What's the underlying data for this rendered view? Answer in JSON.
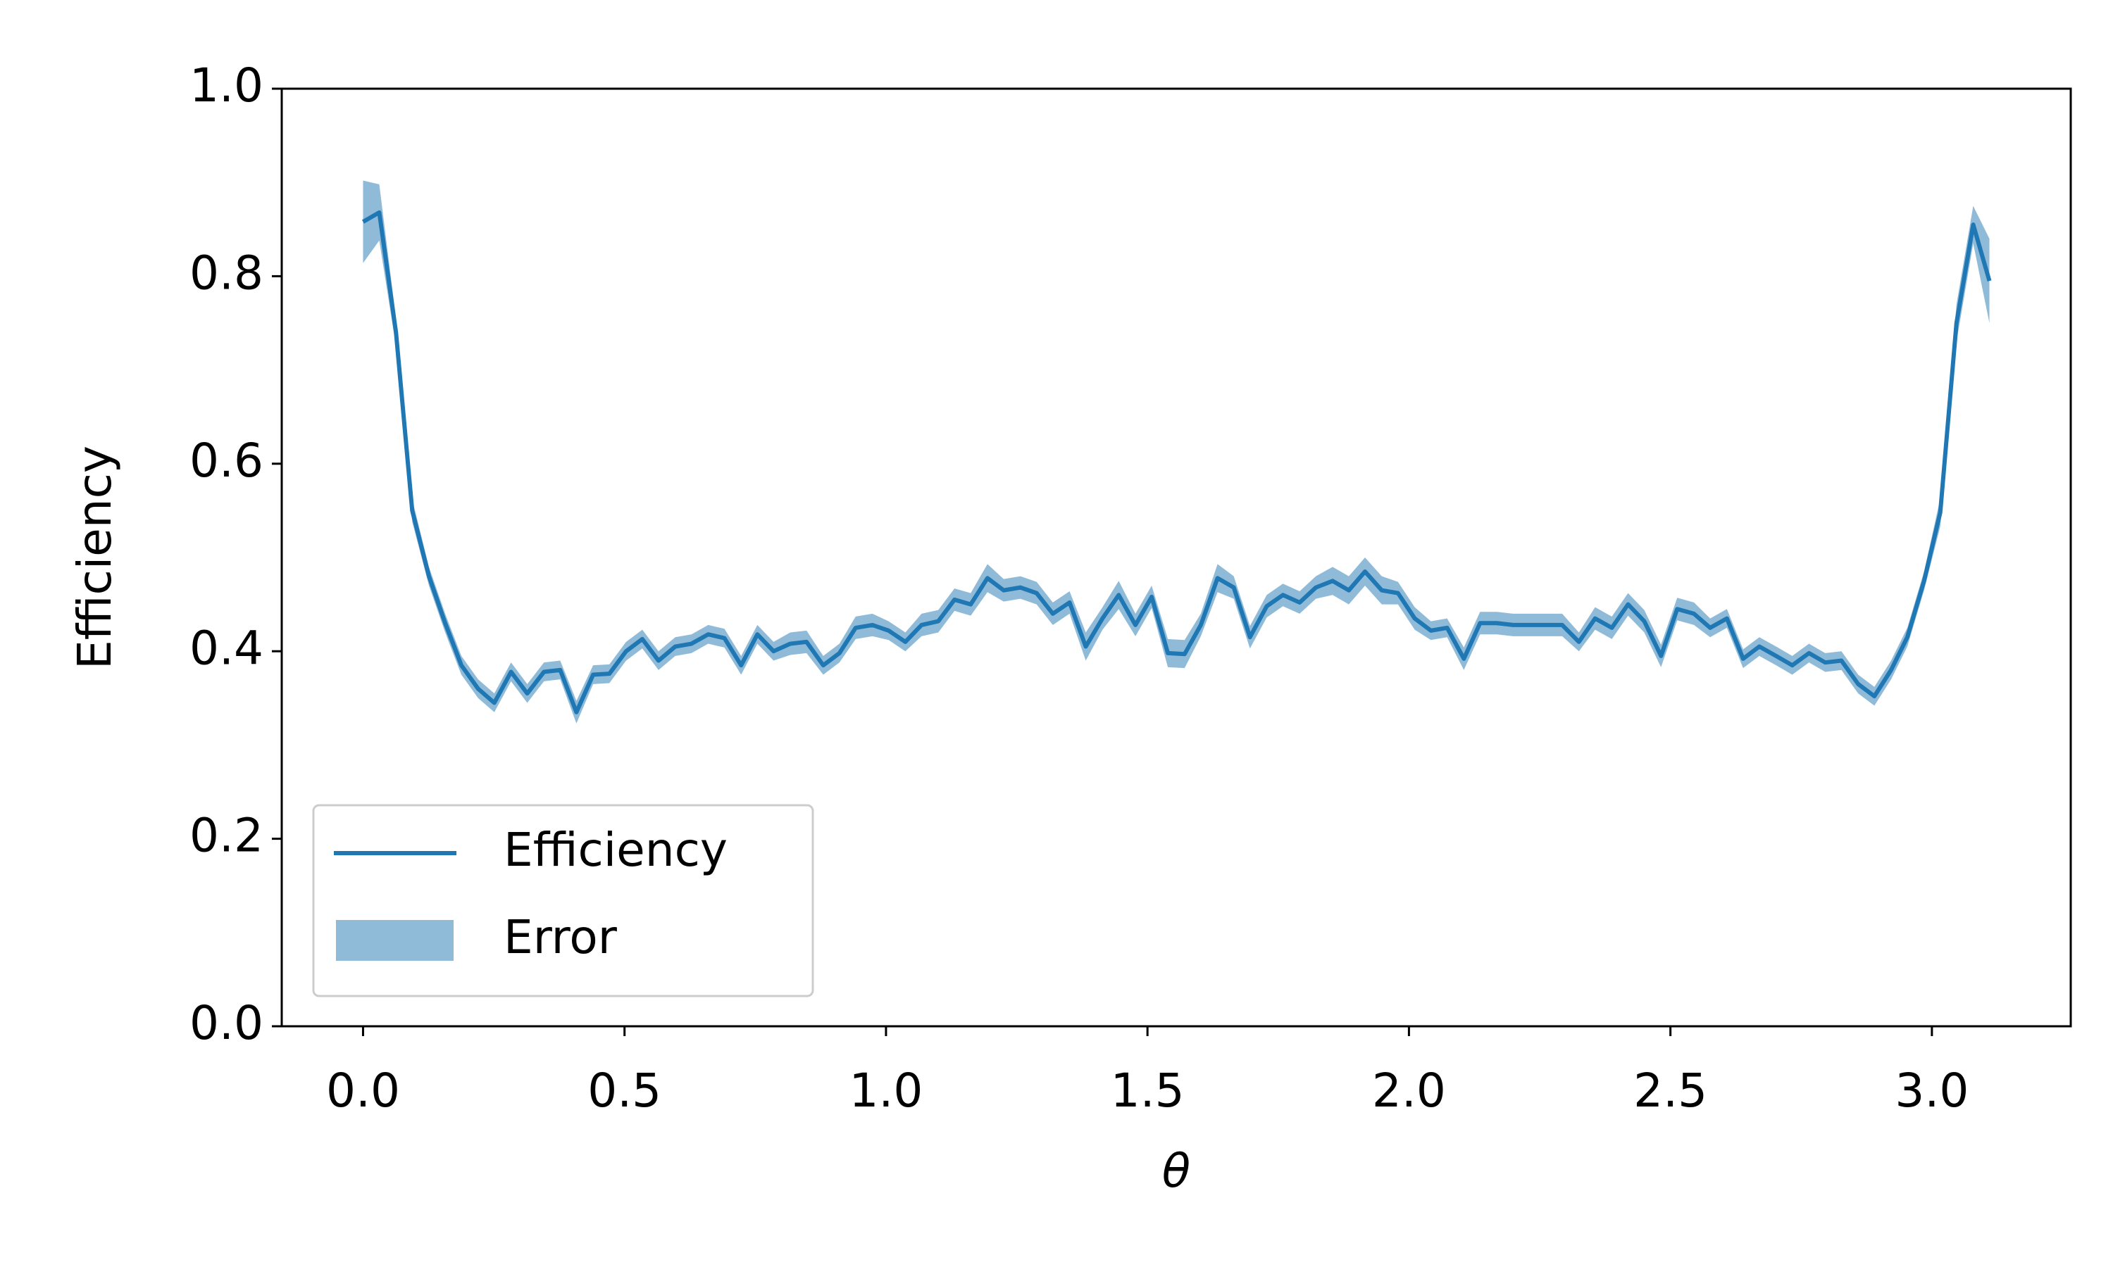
{
  "chart_data": {
    "type": "line",
    "xlabel": "θ",
    "ylabel": "Efficiency",
    "x": [
      0,
      0.031,
      0.063,
      0.094,
      0.126,
      0.157,
      0.188,
      0.22,
      0.251,
      0.283,
      0.314,
      0.346,
      0.377,
      0.408,
      0.44,
      0.471,
      0.503,
      0.534,
      0.565,
      0.597,
      0.628,
      0.66,
      0.691,
      0.723,
      0.754,
      0.785,
      0.817,
      0.848,
      0.88,
      0.911,
      0.942,
      0.974,
      1.005,
      1.037,
      1.068,
      1.1,
      1.131,
      1.162,
      1.194,
      1.225,
      1.257,
      1.288,
      1.319,
      1.351,
      1.382,
      1.414,
      1.445,
      1.477,
      1.508,
      1.539,
      1.571,
      1.602,
      1.634,
      1.665,
      1.696,
      1.728,
      1.759,
      1.791,
      1.822,
      1.854,
      1.885,
      1.916,
      1.948,
      1.979,
      2.011,
      2.042,
      2.073,
      2.105,
      2.136,
      2.168,
      2.199,
      2.231,
      2.262,
      2.293,
      2.325,
      2.356,
      2.388,
      2.419,
      2.45,
      2.482,
      2.513,
      2.545,
      2.576,
      2.608,
      2.639,
      2.67,
      2.702,
      2.733,
      2.765,
      2.796,
      2.827,
      2.859,
      2.89,
      2.922,
      2.953,
      2.985,
      3.016,
      3.047,
      3.079,
      3.11
    ],
    "series": [
      {
        "name": "Efficiency",
        "color": "#1f77b4",
        "values": [
          0.858,
          0.868,
          0.74,
          0.55,
          0.48,
          0.43,
          0.385,
          0.36,
          0.345,
          0.378,
          0.355,
          0.378,
          0.38,
          0.335,
          0.375,
          0.376,
          0.4,
          0.413,
          0.39,
          0.405,
          0.408,
          0.418,
          0.414,
          0.385,
          0.418,
          0.4,
          0.408,
          0.41,
          0.385,
          0.398,
          0.425,
          0.428,
          0.422,
          0.41,
          0.428,
          0.432,
          0.455,
          0.45,
          0.478,
          0.465,
          0.468,
          0.462,
          0.44,
          0.452,
          0.405,
          0.435,
          0.46,
          0.428,
          0.458,
          0.398,
          0.397,
          0.428,
          0.478,
          0.468,
          0.415,
          0.448,
          0.46,
          0.452,
          0.468,
          0.475,
          0.465,
          0.485,
          0.465,
          0.462,
          0.435,
          0.422,
          0.425,
          0.392,
          0.43,
          0.43,
          0.428,
          0.428,
          0.428,
          0.428,
          0.41,
          0.435,
          0.425,
          0.45,
          0.432,
          0.395,
          0.445,
          0.44,
          0.425,
          0.435,
          0.392,
          0.405,
          0.395,
          0.385,
          0.398,
          0.388,
          0.39,
          0.365,
          0.352,
          0.38,
          0.415,
          0.475,
          0.548,
          0.75,
          0.855,
          0.795
        ]
      }
    ],
    "error_band": {
      "name": "Error",
      "color": "#1f77b4",
      "opacity": 0.5,
      "values": [
        0.044,
        0.03,
        0.015,
        0.012,
        0.01,
        0.01,
        0.01,
        0.01,
        0.01,
        0.01,
        0.01,
        0.01,
        0.01,
        0.012,
        0.01,
        0.01,
        0.01,
        0.01,
        0.01,
        0.01,
        0.01,
        0.01,
        0.01,
        0.01,
        0.01,
        0.01,
        0.012,
        0.012,
        0.01,
        0.01,
        0.012,
        0.012,
        0.01,
        0.01,
        0.012,
        0.012,
        0.012,
        0.012,
        0.015,
        0.012,
        0.012,
        0.012,
        0.012,
        0.012,
        0.015,
        0.012,
        0.015,
        0.012,
        0.012,
        0.015,
        0.015,
        0.012,
        0.015,
        0.012,
        0.012,
        0.012,
        0.012,
        0.012,
        0.012,
        0.015,
        0.015,
        0.015,
        0.015,
        0.012,
        0.012,
        0.01,
        0.01,
        0.012,
        0.012,
        0.012,
        0.012,
        0.012,
        0.012,
        0.012,
        0.01,
        0.012,
        0.012,
        0.012,
        0.012,
        0.012,
        0.012,
        0.012,
        0.01,
        0.01,
        0.01,
        0.01,
        0.01,
        0.01,
        0.01,
        0.01,
        0.01,
        0.01,
        0.01,
        0.01,
        0.01,
        0.01,
        0.015,
        0.02,
        0.02,
        0.045
      ]
    },
    "xlim": [
      -0.1555,
      3.2655
    ],
    "ylim": [
      0,
      1
    ],
    "xticks": [
      {
        "value": 0,
        "label": "0.0"
      },
      {
        "value": 0.5,
        "label": "0.5"
      },
      {
        "value": 1,
        "label": "1.0"
      },
      {
        "value": 1.5,
        "label": "1.5"
      },
      {
        "value": 2,
        "label": "2.0"
      },
      {
        "value": 2.5,
        "label": "2.5"
      },
      {
        "value": 3,
        "label": "3.0"
      }
    ],
    "yticks": [
      {
        "value": 0,
        "label": "0.0"
      },
      {
        "value": 0.2,
        "label": "0.2"
      },
      {
        "value": 0.4,
        "label": "0.4"
      },
      {
        "value": 0.6,
        "label": "0.6"
      },
      {
        "value": 0.8,
        "label": "0.8"
      },
      {
        "value": 1,
        "label": "1.0"
      }
    ],
    "legend": "lower left",
    "grid": false
  }
}
